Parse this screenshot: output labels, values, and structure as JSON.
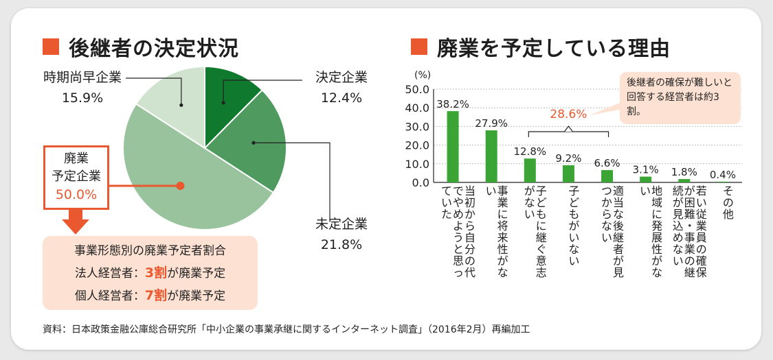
{
  "left_panel": {
    "title": "後継者の決定状況",
    "callout": {
      "line1": "廃業",
      "line2": "予定企業",
      "value": "50.0%"
    },
    "info": {
      "heading": "事業形態別の廃業予定者割合",
      "row1_prefix": "法人経営者：",
      "row1_highlight": "3割",
      "row1_suffix": "が廃業予定",
      "row2_prefix": "個人経営者：",
      "row2_highlight": "7割",
      "row2_suffix": "が廃業予定"
    }
  },
  "right_panel": {
    "title": "廃業を予定している理由",
    "bracket_value": "28.6%",
    "note": "後継者の確保が難しいと回答する経営者は約3割。"
  },
  "source": "資料：日本政策金融公庫総合研究所「中小企業の事業承継に関するインターネット調査」（2016年2月）再編加工",
  "colors": {
    "accent": "#e9582f",
    "bar": "#3aa535",
    "pie_dark": "#0f7a2e",
    "pie_mid": "#4f9a5e",
    "pie_light": "#98c39c",
    "pie_lighter": "#cfe3cf"
  },
  "chart_data": [
    {
      "type": "pie",
      "title": "後継者の決定状況",
      "slices": [
        {
          "label": "決定企業",
          "value": 12.4,
          "display": "12.4%"
        },
        {
          "label": "未定企業",
          "value": 21.8,
          "display": "21.8%"
        },
        {
          "label": "廃業予定企業",
          "value": 50.0,
          "display": "50.0%"
        },
        {
          "label": "時期尚早企業",
          "value": 15.9,
          "display": "15.9%"
        }
      ]
    },
    {
      "type": "bar",
      "title": "廃業を予定している理由",
      "ylabel": "(%)",
      "ylim": [
        0,
        50
      ],
      "yticks": [
        "50.0",
        "40.0",
        "30.0",
        "20.0",
        "10.0",
        "0.0"
      ],
      "categories": [
        "当初から自分の代でやめようと思っていた",
        "事業に将来性がない",
        "子どもに継ぐ意志がない",
        "子どもがいない",
        "適当な後継者が見つからない",
        "地域に発展性がない",
        "若い従業員の確保が困難・事業の継続が見込めない",
        "その他"
      ],
      "values": [
        38.2,
        27.9,
        12.8,
        9.2,
        6.6,
        3.1,
        1.8,
        0.4
      ],
      "value_labels": [
        "38.2%",
        "27.9%",
        "12.8%",
        "9.2%",
        "6.6%",
        "3.1%",
        "1.8%",
        "0.4%"
      ]
    }
  ]
}
